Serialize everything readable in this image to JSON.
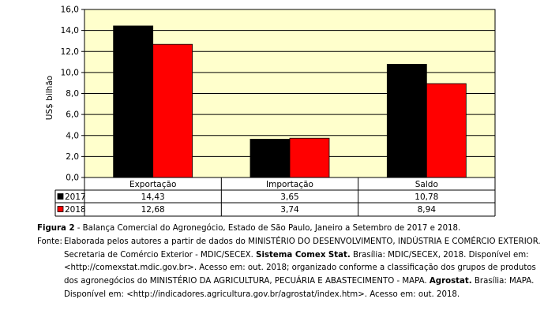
{
  "chart_data": {
    "type": "bar",
    "ylabel": "US$ bilhão",
    "ylim": [
      0,
      16
    ],
    "yticks": [
      "0,0",
      "2,0",
      "4,0",
      "6,0",
      "8,0",
      "10,0",
      "12,0",
      "14,0",
      "16,0"
    ],
    "ytick_values": [
      0,
      2,
      4,
      6,
      8,
      10,
      12,
      14,
      16
    ],
    "categories": [
      "Exportação",
      "Importação",
      "Saldo"
    ],
    "series": [
      {
        "name": "2017",
        "values": [
          14.43,
          3.65,
          10.78
        ],
        "labels": [
          "14,43",
          "3,65",
          "10,78"
        ],
        "color": "#000000"
      },
      {
        "name": "2018",
        "values": [
          12.68,
          3.74,
          8.94
        ],
        "labels": [
          "12,68",
          "3,74",
          "8,94"
        ],
        "color": "#ff0000"
      }
    ],
    "plot_background": "#ffffcc",
    "grid": true,
    "legend": "data-table-left"
  },
  "caption": {
    "figure_label": "Figura 2",
    "figure_text": " - Balança Comercial do Agronegócio, Estado de São Paulo, Janeiro a Setembro de 2017 e 2018.",
    "source_label": "Fonte:",
    "source_line1": "Elaborada pelos autores a partir de dados do MINISTÉRIO DO DESENVOLVIMENTO, INDÚSTRIA E COMÉRCIO EXTERIOR.",
    "source_line2a": "Secretaria de Comércio Exterior - MDIC/SECEX. ",
    "source_line2b": "Sistema Comex Stat.",
    "source_line2c": " Brasília: MDIC/SECEX, 2018. Disponível em:",
    "source_line3": "<http://comexstat.mdic.gov.br>. Acesso em: out. 2018; organizado conforme a classificação dos grupos de produtos",
    "source_line4a": "dos agronegócios do MINISTÉRIO DA AGRICULTURA, PECUÁRIA E ABASTECIMENTO - MAPA. ",
    "source_line4b": "Agrostat.",
    "source_line4c": " Brasília: MAPA.",
    "source_line5": "Disponível em: <http://indicadores.agricultura.gov.br/agrostat/index.htm>. Acesso em: out. 2018."
  }
}
